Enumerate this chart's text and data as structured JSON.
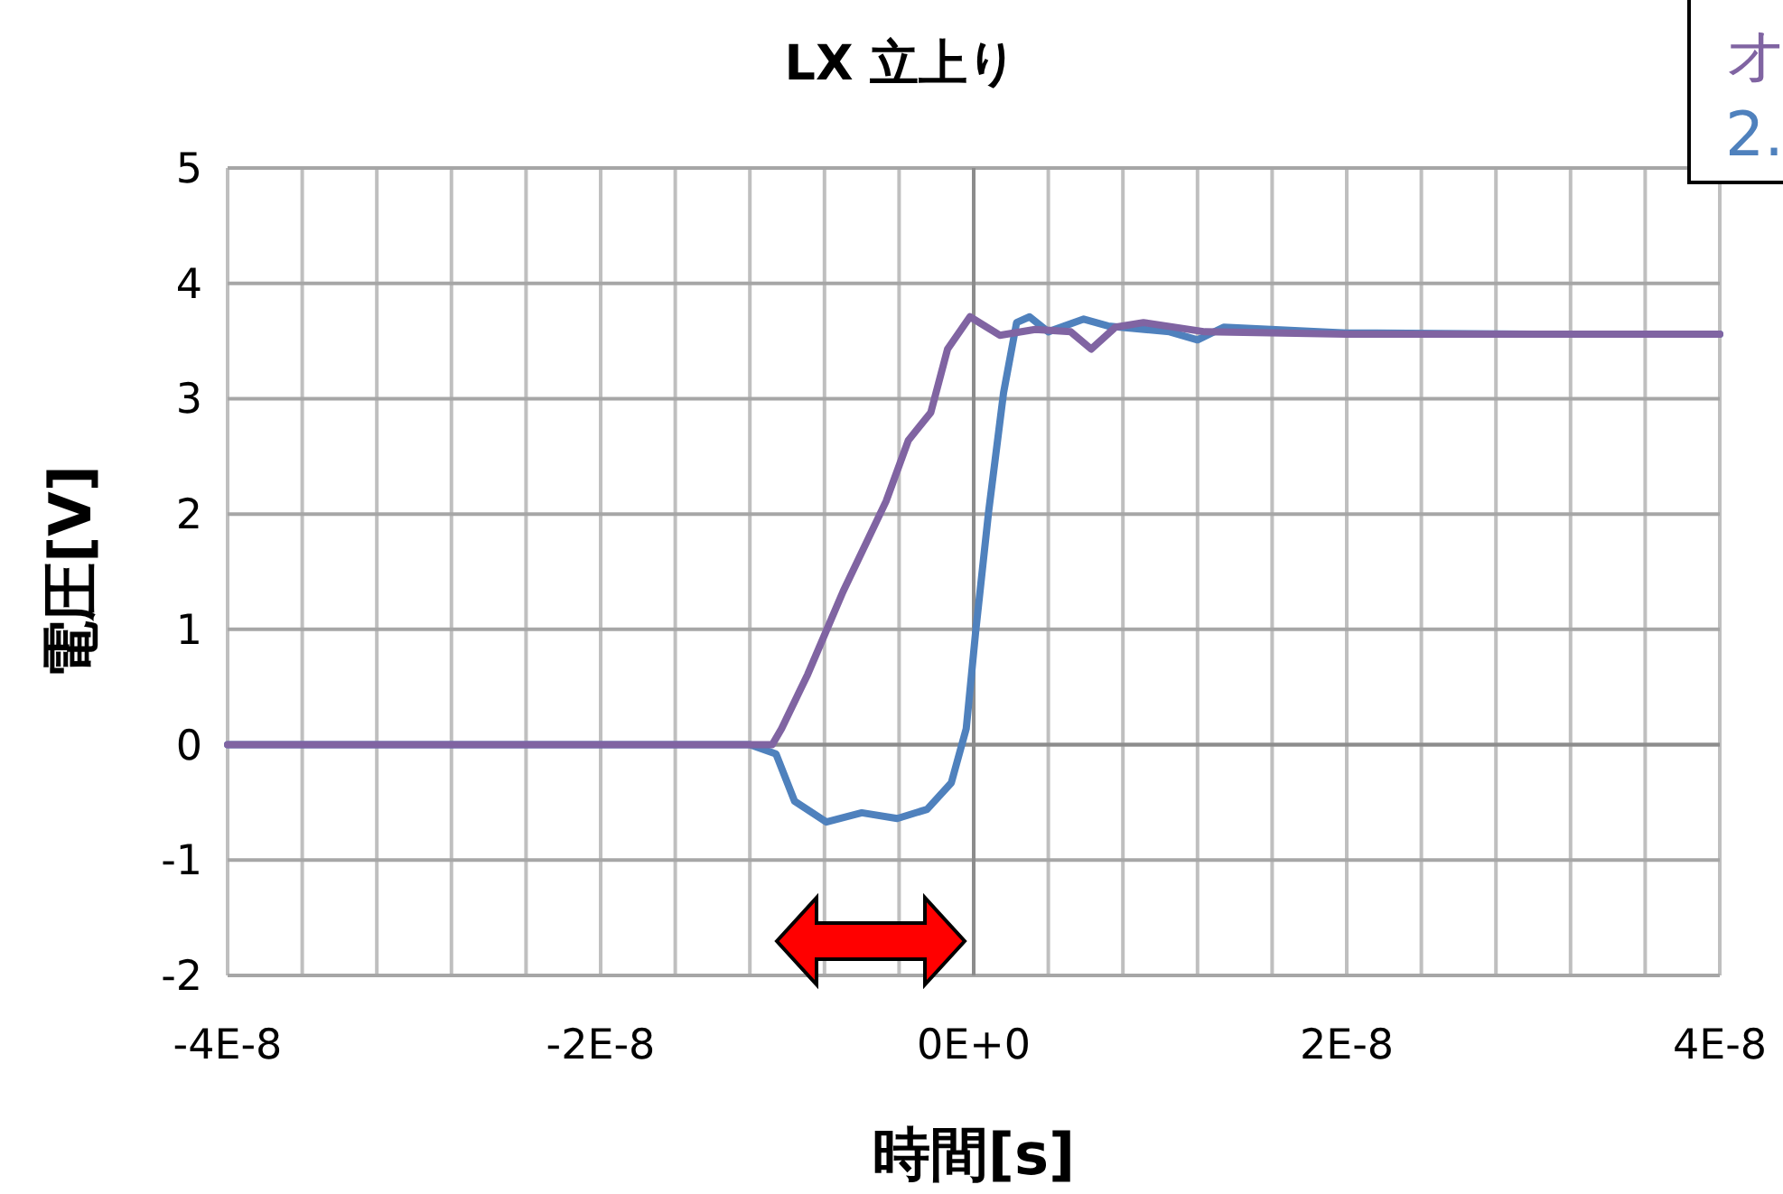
{
  "chart_data": {
    "type": "line",
    "title": "LX 立上り",
    "xlabel": "時間[s]",
    "ylabel": "電圧[V]",
    "xlim": [
      -4e-08,
      4e-08
    ],
    "xticks": [
      {
        "value": -4e-08,
        "label": "-4E-8"
      },
      {
        "value": -3.6e-08,
        "label": null
      },
      {
        "value": -3.2e-08,
        "label": null
      },
      {
        "value": -2.8e-08,
        "label": null
      },
      {
        "value": -2.4e-08,
        "label": null
      },
      {
        "value": -2e-08,
        "label": "-2E-8"
      },
      {
        "value": -1.6e-08,
        "label": null
      },
      {
        "value": -1.2e-08,
        "label": null
      },
      {
        "value": -8e-09,
        "label": null
      },
      {
        "value": -4e-09,
        "label": null
      },
      {
        "value": 0,
        "label": "0E+0"
      },
      {
        "value": 4e-09,
        "label": null
      },
      {
        "value": 8e-09,
        "label": null
      },
      {
        "value": 1.2e-08,
        "label": null
      },
      {
        "value": 1.6e-08,
        "label": null
      },
      {
        "value": 2e-08,
        "label": "2E-8"
      },
      {
        "value": 2.4e-08,
        "label": null
      },
      {
        "value": 2.8e-08,
        "label": null
      },
      {
        "value": 3.2e-08,
        "label": null
      },
      {
        "value": 3.6e-08,
        "label": null
      },
      {
        "value": 4e-08,
        "label": "4E-8"
      }
    ],
    "ylim": [
      -2,
      5
    ],
    "yticks": [
      -2,
      -1,
      0,
      1,
      2,
      3,
      4,
      5
    ],
    "grid": true,
    "legend": "top right",
    "line_style": "solid",
    "series": [
      {
        "name": "2.",
        "color": "#4f81bd",
        "x": [
          -4e-08,
          -2e-08,
          -1.2e-08,
          -1.06e-08,
          -9.6e-09,
          -7.9e-09,
          -6e-09,
          -4.1e-09,
          -2.5e-09,
          -1.2e-09,
          -4e-10,
          1e-10,
          8e-10,
          1.6e-09,
          2.3e-09,
          3e-09,
          4e-09,
          5.9e-09,
          7.2e-09,
          1.05e-08,
          1.2e-08,
          1.34e-08,
          2e-08,
          3e-08,
          4e-08
        ],
        "values": [
          0,
          0,
          0,
          -0.08,
          -0.49,
          -0.67,
          -0.59,
          -0.64,
          -0.56,
          -0.33,
          0.14,
          0.97,
          2.02,
          3.05,
          3.66,
          3.71,
          3.58,
          3.69,
          3.63,
          3.58,
          3.51,
          3.62,
          3.57,
          3.56,
          3.56
        ]
      },
      {
        "name": "オ",
        "color": "#8064a2",
        "x": [
          -4e-08,
          -2e-08,
          -1.2e-08,
          -1.08e-08,
          -1.03e-08,
          -8.9e-09,
          -7e-09,
          -4.7e-09,
          -3.5e-09,
          -2.3e-09,
          -1.4e-09,
          -2e-10,
          1.4e-09,
          3.3e-09,
          5.2e-09,
          6.3e-09,
          7.6e-09,
          9.1e-09,
          1.24e-08,
          2e-08,
          3e-08,
          4e-08
        ],
        "values": [
          0,
          0,
          0,
          0,
          0.14,
          0.61,
          1.33,
          2.11,
          2.64,
          2.88,
          3.43,
          3.71,
          3.55,
          3.6,
          3.58,
          3.43,
          3.62,
          3.66,
          3.58,
          3.56,
          3.56,
          3.56
        ]
      }
    ]
  }
}
